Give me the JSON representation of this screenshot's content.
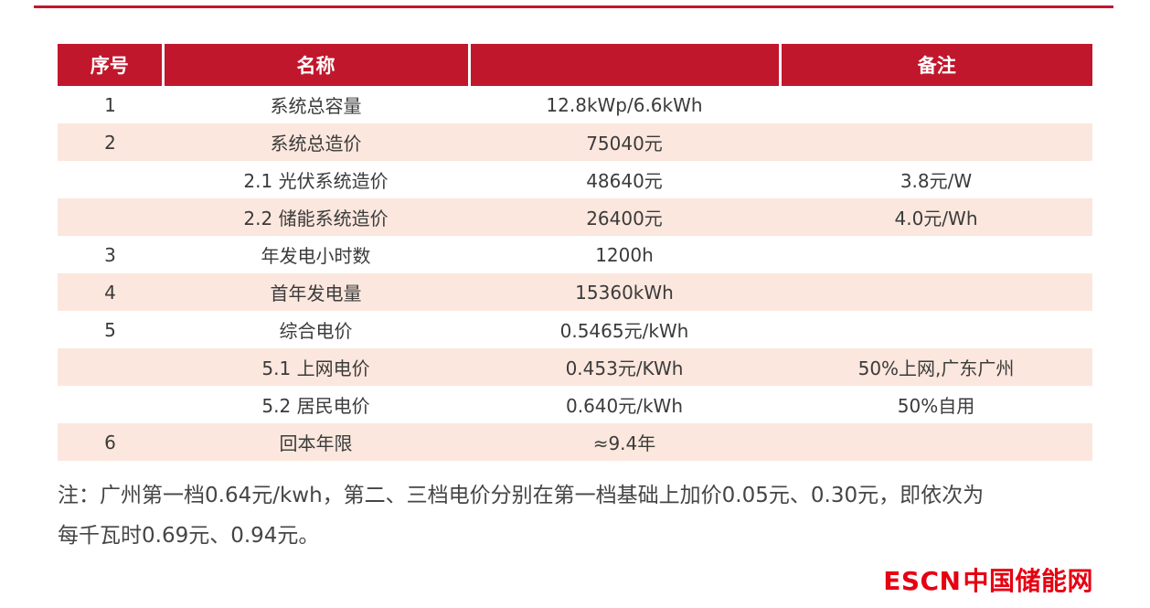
{
  "page": {
    "accent_color": "#c0172c",
    "row_shade_color": "#fbe7de",
    "logo_color": "#e60012"
  },
  "table": {
    "columns": [
      {
        "label": "序号"
      },
      {
        "label": "名称"
      },
      {
        "label": ""
      },
      {
        "label": "备注"
      }
    ],
    "rows": [
      {
        "no": "1",
        "name": "系统总容量",
        "value": "12.8kWp/6.6kWh",
        "remark": "",
        "shaded": false
      },
      {
        "no": "2",
        "name": "系统总造价",
        "value": "75040元",
        "remark": "",
        "shaded": true
      },
      {
        "no": "",
        "name": "2.1 光伏系统造价",
        "value": "48640元",
        "remark": "3.8元/W",
        "shaded": false
      },
      {
        "no": "",
        "name": "2.2 储能系统造价",
        "value": "26400元",
        "remark": "4.0元/Wh",
        "shaded": true
      },
      {
        "no": "3",
        "name": "年发电小时数",
        "value": "1200h",
        "remark": "",
        "shaded": false
      },
      {
        "no": "4",
        "name": "首年发电量",
        "value": "15360kWh",
        "remark": "",
        "shaded": true
      },
      {
        "no": "5",
        "name": "综合电价",
        "value": "0.5465元/kWh",
        "remark": "",
        "shaded": false
      },
      {
        "no": "",
        "name": "5.1 上网电价",
        "value": "0.453元/KWh",
        "remark": "50%上网,广东广州",
        "shaded": true
      },
      {
        "no": "",
        "name": "5.2 居民电价",
        "value": "0.640元/kWh",
        "remark": "50%自用",
        "shaded": false
      },
      {
        "no": "6",
        "name": "回本年限",
        "value": "≈9.4年",
        "remark": "",
        "shaded": true
      }
    ]
  },
  "note": {
    "lines": [
      "注：广州第一档0.64元/kwh，第二、三档电价分别在第一档基础上加价0.05元、0.30元，即依次为",
      "每千瓦时0.69元、0.94元。"
    ]
  },
  "logo": {
    "en": "ESCN",
    "cn": "中国储能网"
  }
}
